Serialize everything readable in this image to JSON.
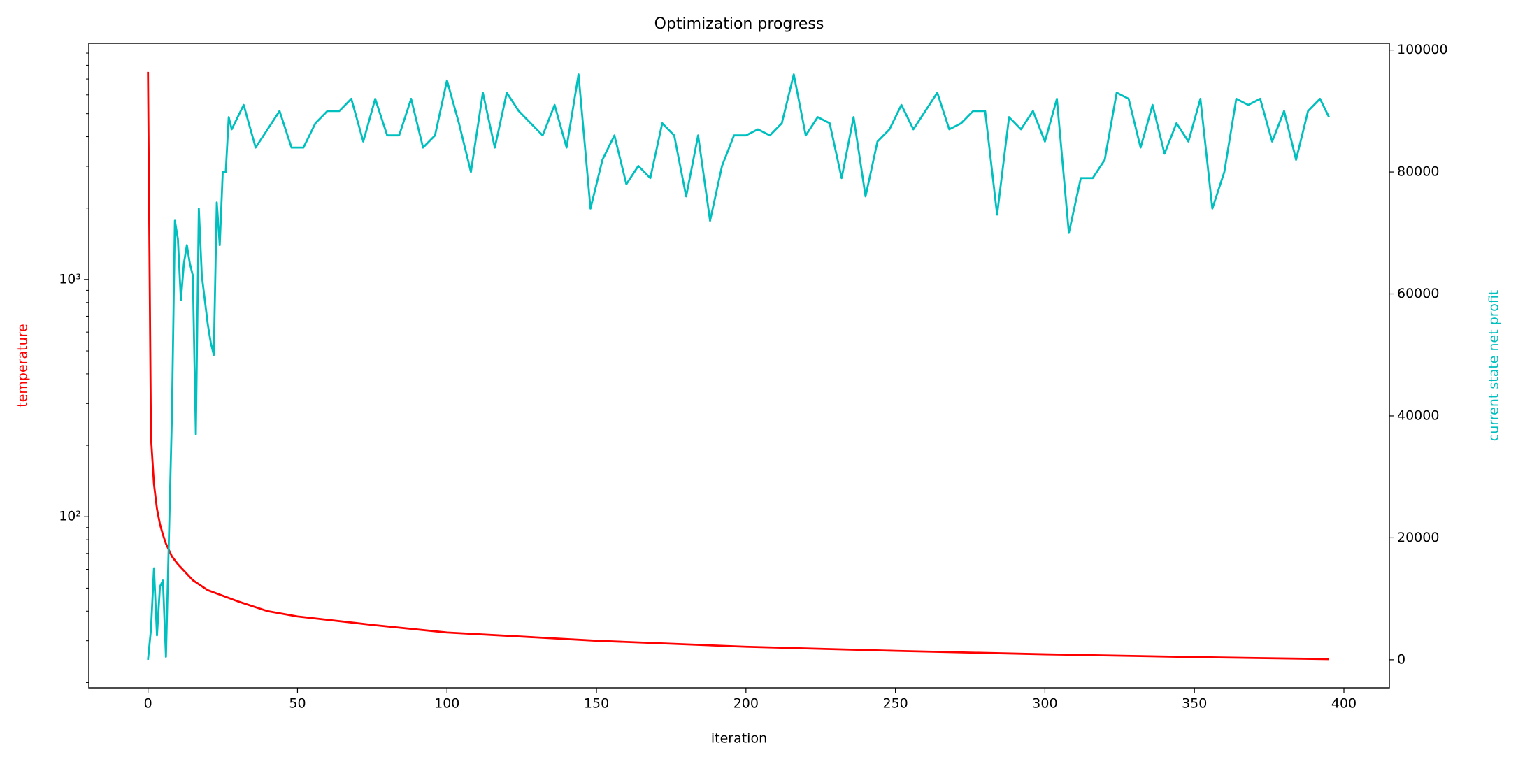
{
  "chart_data": {
    "type": "line",
    "title": "Optimization progress",
    "xlabel": "iteration",
    "ylabel": "temperature",
    "y2label": "current state net profit",
    "yscale": "log",
    "xlim": [
      -19.8,
      415.2
    ],
    "xticks": [
      0,
      50,
      100,
      150,
      200,
      250,
      300,
      350,
      400
    ],
    "ylim": [
      19,
      9900
    ],
    "yticks": [
      {
        "value": 100,
        "label": "10²"
      },
      {
        "value": 1000,
        "label": "10³"
      }
    ],
    "yminorticks": [
      20,
      30,
      40,
      50,
      60,
      70,
      80,
      90,
      200,
      300,
      400,
      500,
      600,
      700,
      800,
      900,
      2000,
      3000,
      4000,
      5000,
      6000,
      7000,
      8000,
      9000
    ],
    "y2lim": [
      -4600,
      101100
    ],
    "y2ticks": [
      0,
      20000,
      40000,
      60000,
      80000,
      100000
    ],
    "series": [
      {
        "name": "temperature",
        "color": "#ff0000",
        "axis": "y",
        "x": [
          0,
          1,
          2,
          3,
          4,
          5,
          6,
          8,
          10,
          15,
          20,
          30,
          40,
          50,
          75,
          100,
          150,
          200,
          250,
          300,
          350,
          395
        ],
        "values": [
          7500,
          216,
          137,
          108,
          93,
          84,
          77,
          68,
          63,
          54,
          49,
          44,
          40,
          38,
          35,
          32.5,
          30,
          28.3,
          27.2,
          26.3,
          25.6,
          25.1
        ]
      },
      {
        "name": "current state net profit",
        "color": "#00bfbf",
        "axis": "y2",
        "x": [
          0,
          1,
          2,
          3,
          4,
          5,
          6,
          7,
          8,
          9,
          10,
          11,
          12,
          13,
          14,
          15,
          16,
          17,
          18,
          19,
          20,
          21,
          22,
          23,
          24,
          25,
          26,
          27,
          28,
          32,
          36,
          40,
          44,
          48,
          52,
          56,
          60,
          64,
          68,
          72,
          76,
          80,
          84,
          88,
          92,
          96,
          100,
          104,
          108,
          112,
          116,
          120,
          124,
          128,
          132,
          136,
          140,
          144,
          148,
          152,
          156,
          160,
          164,
          168,
          172,
          176,
          180,
          184,
          188,
          192,
          196,
          200,
          204,
          208,
          212,
          216,
          220,
          224,
          228,
          232,
          236,
          240,
          244,
          248,
          252,
          256,
          260,
          264,
          268,
          272,
          276,
          280,
          284,
          288,
          292,
          296,
          300,
          304,
          308,
          312,
          316,
          320,
          324,
          328,
          332,
          336,
          340,
          344,
          348,
          352,
          356,
          360,
          364,
          368,
          372,
          376,
          380,
          384,
          388,
          392,
          395
        ],
        "values": [
          0,
          5000,
          15000,
          4000,
          12000,
          13000,
          500,
          20000,
          40000,
          72000,
          69000,
          59000,
          65000,
          68000,
          65000,
          63000,
          37000,
          74000,
          63000,
          59000,
          55000,
          52000,
          50000,
          75000,
          68000,
          80000,
          80000,
          89000,
          87000,
          91000,
          84000,
          87000,
          90000,
          84000,
          84000,
          88000,
          90000,
          90000,
          92000,
          85000,
          92000,
          86000,
          86000,
          92000,
          84000,
          86000,
          95000,
          88000,
          80000,
          93000,
          84000,
          93000,
          90000,
          88000,
          86000,
          91000,
          84000,
          96000,
          74000,
          82000,
          86000,
          78000,
          81000,
          79000,
          88000,
          86000,
          76000,
          86000,
          72000,
          81000,
          86000,
          86000,
          87000,
          86000,
          88000,
          96000,
          86000,
          89000,
          88000,
          79000,
          89000,
          76000,
          85000,
          87000,
          91000,
          87000,
          90000,
          93000,
          87000,
          88000,
          90000,
          90000,
          73000,
          89000,
          87000,
          90000,
          85000,
          92000,
          70000,
          79000,
          79000,
          82000,
          93000,
          92000,
          84000,
          91000,
          83000,
          88000,
          85000,
          92000,
          74000,
          80000,
          92000,
          91000,
          92000,
          85000,
          90000,
          82000,
          90000,
          92000,
          89000
        ]
      }
    ]
  }
}
